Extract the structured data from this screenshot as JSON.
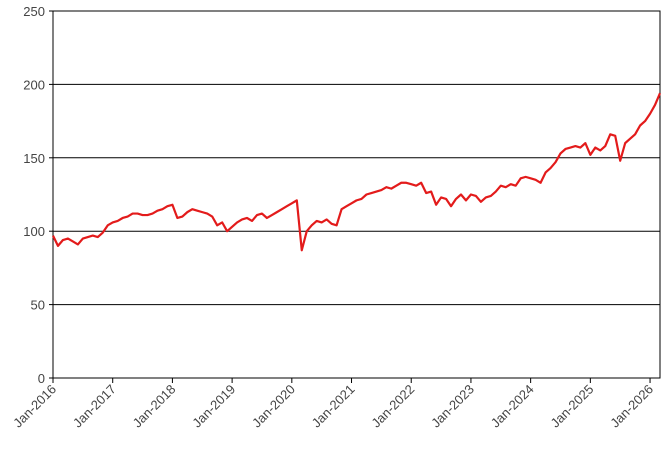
{
  "chart_data": {
    "type": "line",
    "x": [
      "2016-01",
      "2016-02",
      "2016-03",
      "2016-04",
      "2016-05",
      "2016-06",
      "2016-07",
      "2016-08",
      "2016-09",
      "2016-10",
      "2016-11",
      "2016-12",
      "2017-01",
      "2017-02",
      "2017-03",
      "2017-04",
      "2017-05",
      "2017-06",
      "2017-07",
      "2017-08",
      "2017-09",
      "2017-10",
      "2017-11",
      "2017-12",
      "2018-01",
      "2018-02",
      "2018-03",
      "2018-04",
      "2018-05",
      "2018-06",
      "2018-07",
      "2018-08",
      "2018-09",
      "2018-10",
      "2018-11",
      "2018-12",
      "2019-01",
      "2019-02",
      "2019-03",
      "2019-04",
      "2019-05",
      "2019-06",
      "2019-07",
      "2019-08",
      "2019-09",
      "2019-10",
      "2019-11",
      "2019-12",
      "2020-01",
      "2020-02",
      "2020-03",
      "2020-04",
      "2020-05",
      "2020-06",
      "2020-07",
      "2020-08",
      "2020-09",
      "2020-10",
      "2020-11",
      "2020-12",
      "2021-01",
      "2021-02",
      "2021-03",
      "2021-04",
      "2021-05",
      "2021-06",
      "2021-07",
      "2021-08",
      "2021-09",
      "2021-10",
      "2021-11",
      "2021-12",
      "2022-01",
      "2022-02",
      "2022-03",
      "2022-04",
      "2022-05",
      "2022-06",
      "2022-07",
      "2022-08",
      "2022-09",
      "2022-10",
      "2022-11",
      "2022-12",
      "2023-01",
      "2023-02",
      "2023-03",
      "2023-04",
      "2023-05",
      "2023-06",
      "2023-07",
      "2023-08",
      "2023-09",
      "2023-10",
      "2023-11",
      "2023-12",
      "2024-01",
      "2024-02",
      "2024-03",
      "2024-04",
      "2024-05",
      "2024-06",
      "2024-07",
      "2024-08",
      "2024-09",
      "2024-10",
      "2024-11",
      "2024-12",
      "2025-01",
      "2025-02",
      "2025-03",
      "2025-04",
      "2025-05",
      "2025-06",
      "2025-07",
      "2025-08",
      "2025-09",
      "2025-10",
      "2025-11",
      "2025-12",
      "2026-01",
      "2026-02",
      "2026-03"
    ],
    "values": [
      97,
      90,
      94,
      95,
      93,
      91,
      95,
      96,
      97,
      96,
      99,
      104,
      106,
      107,
      109,
      110,
      112,
      112,
      111,
      111,
      112,
      114,
      115,
      117,
      118,
      109,
      110,
      113,
      115,
      114,
      113,
      112,
      110,
      104,
      106,
      100,
      103,
      106,
      108,
      109,
      107,
      111,
      112,
      109,
      111,
      113,
      115,
      117,
      119,
      121,
      87,
      100,
      104,
      107,
      106,
      108,
      105,
      104,
      115,
      117,
      119,
      121,
      122,
      125,
      126,
      127,
      128,
      130,
      129,
      131,
      133,
      133,
      132,
      131,
      133,
      126,
      127,
      118,
      123,
      122,
      117,
      122,
      125,
      121,
      125,
      124,
      120,
      123,
      124,
      127,
      131,
      130,
      132,
      131,
      136,
      137,
      136,
      135,
      133,
      140,
      143,
      147,
      153,
      156,
      157,
      158,
      157,
      160,
      152,
      157,
      155,
      158,
      166,
      165,
      148,
      160,
      163,
      166,
      172,
      175,
      180,
      186,
      194
    ],
    "color": "#e31b1b",
    "xlim": [
      "2016-01",
      "2026-03"
    ],
    "xticks": [
      {
        "value": "2016-01",
        "label": "Jan-2016"
      },
      {
        "value": "2017-01",
        "label": "Jan-2017"
      },
      {
        "value": "2018-01",
        "label": "Jan-2018"
      },
      {
        "value": "2019-01",
        "label": "Jan-2019"
      },
      {
        "value": "2020-01",
        "label": "Jan-2020"
      },
      {
        "value": "2021-01",
        "label": "Jan-2021"
      },
      {
        "value": "2022-01",
        "label": "Jan-2022"
      },
      {
        "value": "2023-01",
        "label": "Jan-2023"
      },
      {
        "value": "2024-01",
        "label": "Jan-2024"
      },
      {
        "value": "2025-01",
        "label": "Jan-2025"
      },
      {
        "value": "2026-01",
        "label": "Jan-2026"
      }
    ],
    "ylim": [
      0,
      250
    ],
    "yticks": [
      0,
      50,
      100,
      150,
      200,
      250
    ],
    "grid": true
  }
}
